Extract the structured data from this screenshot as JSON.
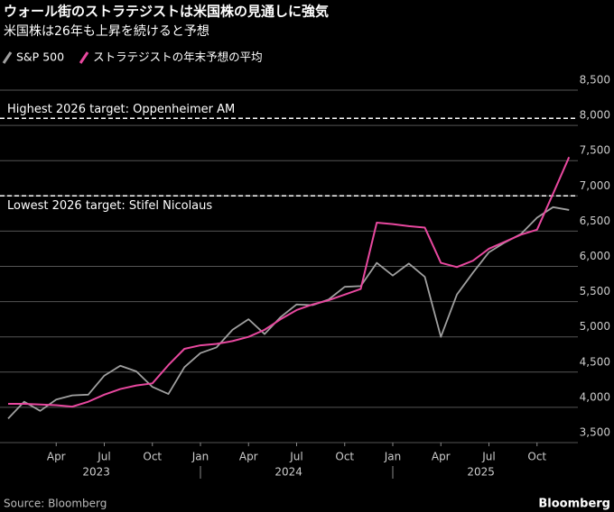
{
  "chart_data": {
    "type": "line",
    "title": "ウォール街のストラテジストは米国株の見通しに強気",
    "subtitle": "米国株は26年も上昇を続けると予想",
    "x": [
      "2023-01",
      "2023-02",
      "2023-03",
      "2023-04",
      "2023-05",
      "2023-06",
      "2023-07",
      "2023-08",
      "2023-09",
      "2023-10",
      "2023-11",
      "2023-12",
      "2024-01",
      "2024-02",
      "2024-03",
      "2024-04",
      "2024-05",
      "2024-06",
      "2024-07",
      "2024-08",
      "2024-09",
      "2024-10",
      "2024-11",
      "2024-12",
      "2025-01",
      "2025-02",
      "2025-03",
      "2025-04",
      "2025-05",
      "2025-06",
      "2025-07",
      "2025-08",
      "2025-09",
      "2025-10",
      "2025-11",
      "2025-12"
    ],
    "series": [
      {
        "name": "S&P 500",
        "color": "#a0a0a0",
        "values": [
          3840,
          4080,
          3950,
          4110,
          4170,
          4180,
          4450,
          4590,
          4510,
          4290,
          4190,
          4570,
          4770,
          4850,
          5100,
          5250,
          5040,
          5280,
          5460,
          5450,
          5530,
          5710,
          5720,
          6050,
          5870,
          6040,
          5850,
          5000,
          5600,
          5910,
          6200,
          6340,
          6460,
          6690,
          6840,
          6800
        ]
      },
      {
        "name": "ストラテジストの年末予想の平均",
        "color": "#e8489f",
        "values": [
          4050,
          4050,
          4040,
          4030,
          4010,
          4080,
          4180,
          4260,
          4310,
          4340,
          4600,
          4830,
          4880,
          4900,
          4940,
          5000,
          5100,
          5250,
          5380,
          5460,
          5520,
          5600,
          5680,
          6620,
          6600,
          6570,
          6550,
          6050,
          5990,
          6080,
          6250,
          6350,
          6450,
          6520,
          7030,
          7550
        ]
      }
    ],
    "xticks": [
      {
        "value": "2023-04",
        "label": "Apr"
      },
      {
        "value": "2023-07",
        "label": "Jul"
      },
      {
        "value": "2023-10",
        "label": "Oct"
      },
      {
        "value": "2024-01",
        "label": "Jan"
      },
      {
        "value": "2024-04",
        "label": "Apr"
      },
      {
        "value": "2024-07",
        "label": "Jul"
      },
      {
        "value": "2024-10",
        "label": "Oct"
      },
      {
        "value": "2025-01",
        "label": "Jan"
      },
      {
        "value": "2025-04",
        "label": "Apr"
      },
      {
        "value": "2025-07",
        "label": "Jul"
      },
      {
        "value": "2025-10",
        "label": "Oct"
      }
    ],
    "years": [
      "2023",
      "2024",
      "2025"
    ],
    "ylim": [
      3500,
      8500
    ],
    "yticks": [
      {
        "value": 3500,
        "label": "3,500"
      },
      {
        "value": 4000,
        "label": "4,000"
      },
      {
        "value": 4500,
        "label": "4,500"
      },
      {
        "value": 5000,
        "label": "5,000"
      },
      {
        "value": 5500,
        "label": "5,500"
      },
      {
        "value": 6000,
        "label": "6,000"
      },
      {
        "value": 6500,
        "label": "6,500"
      },
      {
        "value": 7000,
        "label": "7,000"
      },
      {
        "value": 7500,
        "label": "7,500"
      },
      {
        "value": 8000,
        "label": "8,000"
      },
      {
        "value": 8500,
        "label": "8,500"
      }
    ],
    "grid": true,
    "reference_lines": [
      {
        "value": 8100,
        "label": "Highest 2026 target: Oppenheimer AM"
      },
      {
        "value": 7000,
        "label": "Lowest 2026 target: Stifel Nicolaus"
      }
    ],
    "source": "Source: Bloomberg",
    "brand": "Bloomberg"
  }
}
